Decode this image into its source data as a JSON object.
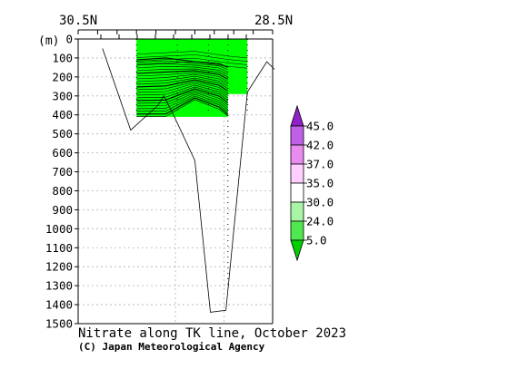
{
  "chart_data": {
    "type": "contour-section",
    "title": "Nitrate along TK line, October 2023",
    "credit": "(C) Japan Meteorological Agency",
    "y_unit": "(m)",
    "top_axis": {
      "left_label": "30.5N",
      "right_label": "28.5N"
    },
    "y_axis": {
      "range": [
        0,
        1500
      ],
      "ticks": [
        0,
        100,
        200,
        300,
        400,
        500,
        600,
        700,
        800,
        900,
        1000,
        1100,
        1200,
        1300,
        1400,
        1500
      ],
      "tick_labels": [
        "0",
        "100",
        "200",
        "300",
        "400",
        "500",
        "600",
        "700",
        "800",
        "900",
        "1000",
        "1100",
        "1200",
        "1300",
        "1400",
        "1500"
      ],
      "inverted": true
    },
    "grid": true,
    "seafloor_depth_profile": [
      {
        "lat": 30.25,
        "depth": 50
      },
      {
        "lat": 29.96,
        "depth": 480
      },
      {
        "lat": 29.68,
        "depth": 350
      },
      {
        "lat": 29.62,
        "depth": 300
      },
      {
        "lat": 29.52,
        "depth": 400
      },
      {
        "lat": 29.3,
        "depth": 640
      },
      {
        "lat": 29.14,
        "depth": 1440
      },
      {
        "lat": 28.98,
        "depth": 1430
      },
      {
        "lat": 28.76,
        "depth": 280
      },
      {
        "lat": 28.56,
        "depth": 120
      },
      {
        "lat": 28.48,
        "depth": 160
      }
    ],
    "station_lats": [
      29.9,
      29.48,
      29.16,
      28.96,
      28.76
    ],
    "colorbar": {
      "levels": [
        "5.0",
        "24.0",
        "30.0",
        "35.0",
        "37.0",
        "42.0",
        "45.0"
      ],
      "colors": [
        "#00d000",
        "#50e850",
        "#a8f5a8",
        "#ffffff",
        "#ffd0ff",
        "#e88cf0",
        "#c060e8",
        "#9020c8"
      ]
    },
    "data_fill_color": "#00ff00"
  }
}
